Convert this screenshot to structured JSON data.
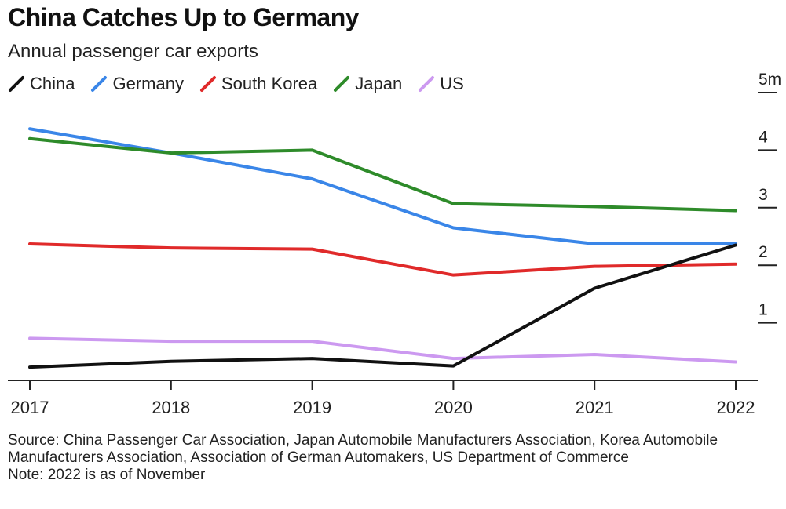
{
  "header": {
    "title": "China Catches Up to Germany",
    "subtitle": "Annual passenger car exports"
  },
  "chart_data": {
    "type": "line",
    "title": "China Catches Up to Germany",
    "subtitle": "Annual passenger car exports",
    "x": [
      "2017",
      "2018",
      "2019",
      "2020",
      "2021",
      "2022"
    ],
    "y_ticks": [
      "1",
      "2",
      "3",
      "4",
      "5m"
    ],
    "ylim": [
      0,
      5
    ],
    "y_axis_side": "right",
    "grid": false,
    "legend_position": "top-left",
    "series": [
      {
        "name": "China",
        "color": "#111111",
        "values": [
          0.23,
          0.33,
          0.38,
          0.25,
          1.6,
          2.35
        ]
      },
      {
        "name": "Germany",
        "color": "#3a86e8",
        "values": [
          4.37,
          3.95,
          3.5,
          2.65,
          2.37,
          2.38
        ]
      },
      {
        "name": "South Korea",
        "color": "#e02a2a",
        "values": [
          2.37,
          2.3,
          2.28,
          1.83,
          1.98,
          2.02
        ]
      },
      {
        "name": "Japan",
        "color": "#2e8b2a",
        "values": [
          4.2,
          3.95,
          4.0,
          3.07,
          3.02,
          2.95
        ]
      },
      {
        "name": "US",
        "color": "#cc99f0",
        "values": [
          0.73,
          0.68,
          0.68,
          0.38,
          0.45,
          0.32
        ]
      }
    ]
  },
  "footer": {
    "source": "Source: China Passenger Car Association, Japan Automobile Manufacturers Association, Korea Automobile Manufacturers Association, Association of German Automakers, US Department of Commerce",
    "note": "Note: 2022 is as of November"
  }
}
